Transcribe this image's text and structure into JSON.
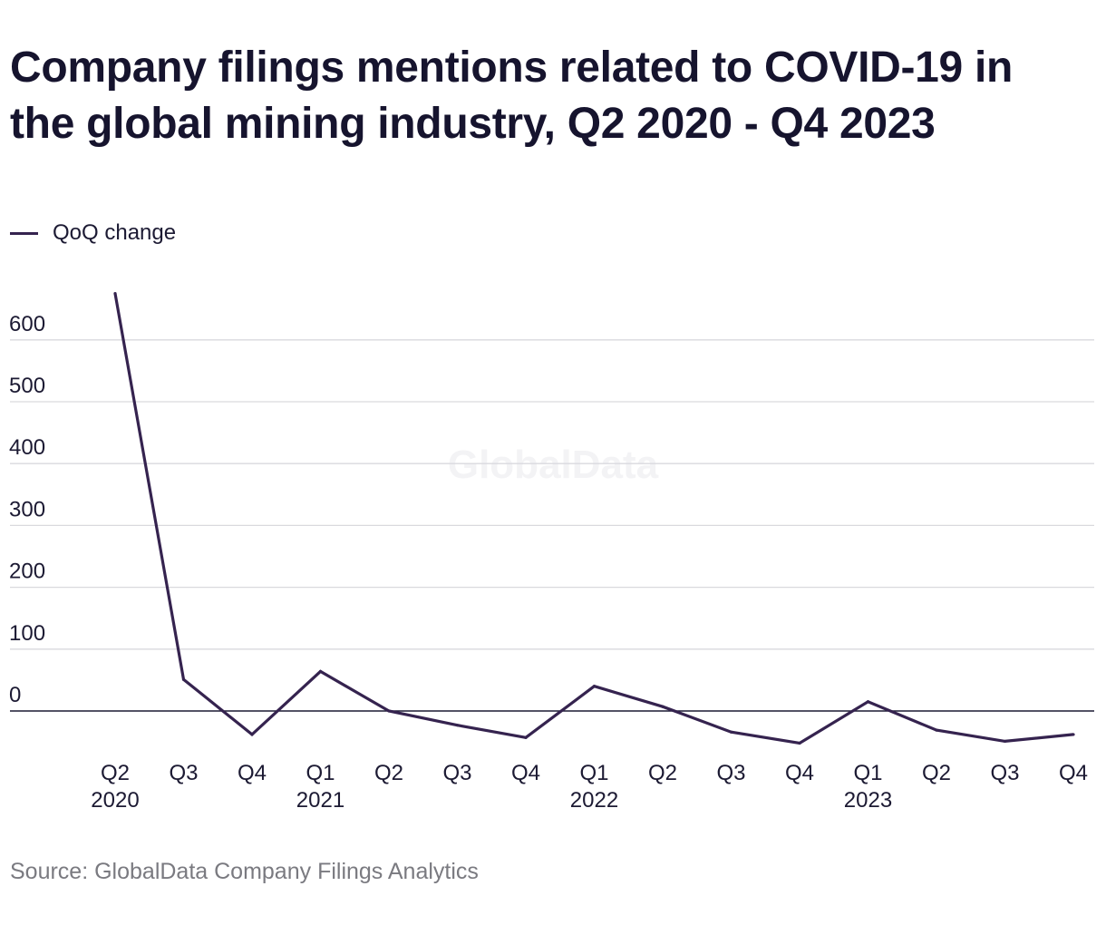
{
  "chart_data": {
    "type": "line",
    "title": "Company filings mentions related to COVID-19 in the global mining industry, Q2 2020 - Q4 2023",
    "categories": [
      "Q2",
      "Q3",
      "Q4",
      "Q1",
      "Q2",
      "Q3",
      "Q4",
      "Q1",
      "Q2",
      "Q3",
      "Q4",
      "Q1",
      "Q2",
      "Q3",
      "Q4"
    ],
    "category_years": [
      "2020",
      "",
      "",
      "2021",
      "",
      "",
      "",
      "2022",
      "",
      "",
      "",
      "2023",
      "",
      "",
      ""
    ],
    "series": [
      {
        "name": "QoQ change",
        "color": "#35234f",
        "values": [
          675,
          51,
          -38,
          64,
          0,
          -23,
          -43,
          40,
          7,
          -34,
          -52,
          15,
          -31,
          -49,
          -38
        ]
      }
    ],
    "y_ticks": [
      0,
      100,
      200,
      300,
      400,
      500,
      600
    ],
    "ylim": [
      -60,
      680
    ],
    "grid": true,
    "legend": "top-left",
    "watermark": "GlobalData",
    "source": "Source: GlobalData Company Filings Analytics",
    "xlabel": "",
    "ylabel": ""
  }
}
